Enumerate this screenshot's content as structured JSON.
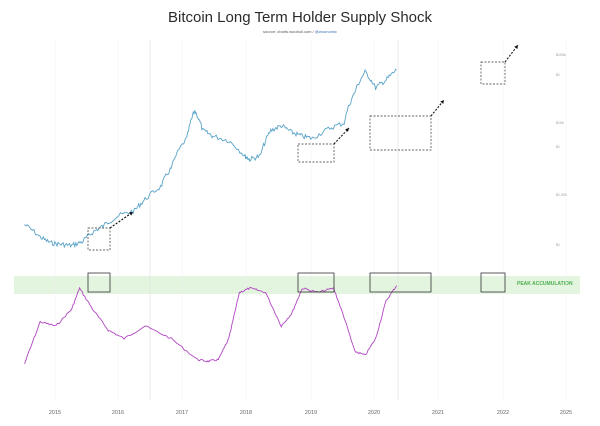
{
  "title": "Bitcoin Long Term Holder Supply Shock",
  "source_label": "source: charts.woobull.com /",
  "source_handle": "@woonomic",
  "band_label": "PEAK ACCUMULATION",
  "colors": {
    "price": "#5aa3c8",
    "lths": "#b146c2",
    "band": "#e3f4df",
    "band_text": "#4caf50",
    "box": "#333333"
  },
  "chart_data": [
    {
      "type": "line",
      "title": "Bitcoin Long Term Holder Supply Shock",
      "xlabel": "",
      "ylabel": "",
      "x_ticks": [
        "2015",
        "2016",
        "2017",
        "2018",
        "2019",
        "2020",
        "2021",
        "2022",
        "2025"
      ],
      "y_scale": "log",
      "y_right_ticks": [
        "$100k",
        "$1",
        "$10k",
        "$1",
        "$1,000",
        "$1"
      ],
      "grid": "vertical",
      "series": [
        {
          "name": "",
          "x": [
            2014.7,
            2015.0,
            2015.2,
            2015.4,
            2015.6,
            2015.8,
            2016.0,
            2016.2,
            2016.5,
            2016.8,
            2017.0,
            2017.3,
            2017.5,
            2017.8,
            2017.95,
            2018.1,
            2018.3,
            2018.6,
            2018.9,
            2019.0,
            2019.2,
            2019.4,
            2019.6,
            2019.8,
            2020.0,
            2020.2,
            2020.5,
            2020.8,
            2021.0,
            2021.2,
            2021.4,
            2021.6,
            2021.8
          ],
          "y": [
            450,
            300,
            250,
            240,
            230,
            260,
            350,
            430,
            600,
            700,
            1000,
            1500,
            2700,
            7000,
            17000,
            9000,
            7500,
            6500,
            4000,
            3600,
            4000,
            9000,
            10500,
            8500,
            7500,
            7000,
            9500,
            11500,
            30000,
            58000,
            35000,
            45000,
            62000
          ]
        },
        {
          "name": "",
          "x": [
            2014.7,
            2015.0,
            2015.3,
            2015.6,
            2015.75,
            2016.0,
            2016.3,
            2016.6,
            2017.0,
            2017.5,
            2018.0,
            2018.2,
            2018.4,
            2018.6,
            2018.8,
            2019.0,
            2019.3,
            2019.6,
            2019.8,
            2020.0,
            2020.3,
            2020.6,
            2020.8,
            2021.0,
            2021.2,
            2021.4,
            2021.6,
            2021.8
          ],
          "y": [
            0.05,
            0.55,
            0.5,
            0.7,
            0.95,
            0.7,
            0.45,
            0.35,
            0.5,
            0.35,
            0.1,
            0.08,
            0.1,
            0.35,
            0.9,
            0.95,
            0.9,
            0.5,
            0.65,
            0.95,
            0.9,
            0.95,
            0.6,
            0.2,
            0.15,
            0.35,
            0.8,
            0.98
          ]
        }
      ],
      "annotations": [
        "PEAK ACCUMULATION"
      ]
    }
  ]
}
